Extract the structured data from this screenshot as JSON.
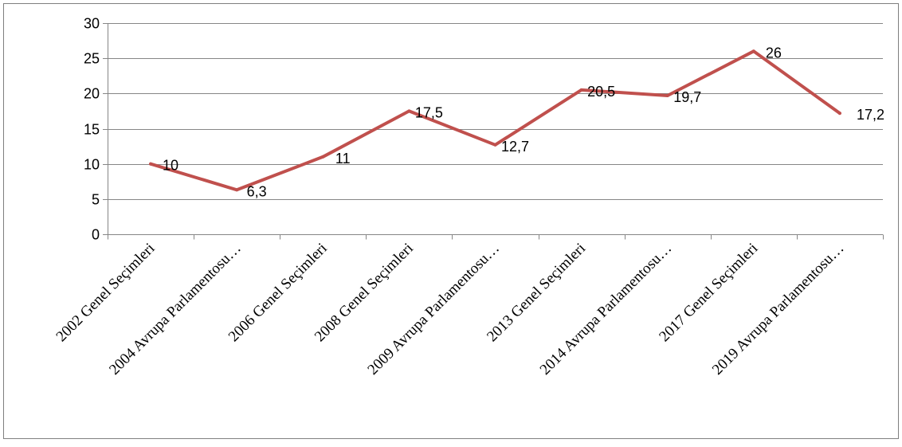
{
  "chart_data": {
    "type": "line",
    "title": "",
    "xlabel": "",
    "ylabel": "",
    "ylim": [
      0,
      30
    ],
    "yticks": [
      0,
      5,
      10,
      15,
      20,
      25,
      30
    ],
    "grid": true,
    "legend": "none",
    "categories": [
      "2002 Genel Seçimleri",
      "2004 Avrupa Parlamentosu…",
      "2006 Genel Seçimleri",
      "2008 Genel Seçimleri",
      "2009 Avrupa Parlamentosu…",
      "2013 Genel Seçimleri",
      "2014 Avrupa Parlamentosu…",
      "2017 Genel Seçimleri",
      "2019 Avrupa Parlamentosu…"
    ],
    "series": [
      {
        "values": [
          10,
          6.3,
          11,
          17.5,
          12.7,
          20.5,
          19.7,
          26,
          17.2
        ],
        "data_labels": [
          "10",
          "6,3",
          "11",
          "17,5",
          "12,7",
          "20,5",
          "19,7",
          "26",
          "17,2"
        ],
        "color": "#c0504d"
      }
    ]
  }
}
